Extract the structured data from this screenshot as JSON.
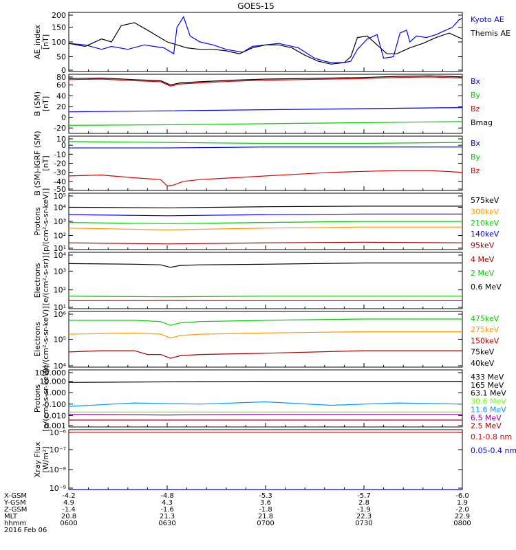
{
  "title": "GOES-15",
  "colors": {
    "blue": "#0000ff",
    "black": "#000000",
    "red": "#dd0000",
    "green": "#00cc00",
    "orange": "#ff9900",
    "darkred": "#aa0000",
    "lightblue": "#0099ff",
    "yellow": "#dddd00",
    "lime": "#66ff00",
    "purple": "#990099",
    "brown": "#990000"
  },
  "chart_data": [
    {
      "type": "line",
      "ylabel": "AE_index\n[nT]",
      "ylim": [
        0,
        200
      ],
      "yscale": "linear",
      "yticks": [
        "0",
        "50",
        "100",
        "150",
        "200"
      ],
      "xlim": [
        0,
        120
      ],
      "series": [
        {
          "name": "Kyoto AE",
          "color": "blue",
          "x": [
            0,
            5,
            10,
            13,
            18,
            23,
            26,
            29,
            32,
            33,
            35,
            37,
            40,
            44,
            48,
            53,
            56,
            60,
            64,
            70,
            75,
            78,
            80,
            84,
            86,
            88,
            91,
            94,
            96,
            99,
            101,
            103,
            104,
            106,
            109,
            112,
            115,
            117,
            119,
            120
          ],
          "y": [
            95,
            90,
            75,
            85,
            75,
            90,
            85,
            80,
            60,
            150,
            185,
            120,
            100,
            90,
            75,
            65,
            85,
            90,
            95,
            80,
            45,
            35,
            30,
            30,
            35,
            75,
            110,
            125,
            45,
            50,
            130,
            140,
            100,
            120,
            115,
            125,
            140,
            150,
            175,
            180
          ]
        },
        {
          "name": "Themis AE",
          "color": "black",
          "x": [
            0,
            5,
            10,
            13,
            16,
            20,
            24,
            27,
            30,
            33,
            36,
            40,
            44,
            48,
            52,
            56,
            60,
            64,
            68,
            72,
            76,
            80,
            84,
            86,
            88,
            91,
            94,
            97,
            100,
            104,
            108,
            112,
            116,
            120
          ],
          "y": [
            95,
            85,
            110,
            100,
            155,
            165,
            140,
            120,
            100,
            90,
            80,
            75,
            75,
            70,
            60,
            80,
            90,
            90,
            80,
            55,
            35,
            25,
            30,
            50,
            115,
            120,
            90,
            60,
            60,
            80,
            95,
            115,
            130,
            110
          ]
        }
      ],
      "legend": [
        "Kyoto AE",
        "Themis AE"
      ]
    },
    {
      "type": "line",
      "ylabel": "B (SM)\n[nT]",
      "ylim": [
        -30,
        80
      ],
      "yscale": "linear",
      "yticks": [
        "-20",
        "0",
        "20",
        "40",
        "60",
        "80"
      ],
      "series": [
        {
          "name": "Bx",
          "color": "blue",
          "x": [
            0,
            30,
            60,
            90,
            120
          ],
          "y": [
            10,
            12,
            14,
            16,
            18
          ]
        },
        {
          "name": "By",
          "color": "green",
          "x": [
            0,
            30,
            60,
            90,
            120
          ],
          "y": [
            -15,
            -14,
            -12,
            -10,
            -8
          ]
        },
        {
          "name": "Bz",
          "color": "red",
          "x": [
            0,
            10,
            20,
            28,
            31,
            34,
            40,
            50,
            60,
            70,
            80,
            90,
            100,
            110,
            120
          ],
          "y": [
            70,
            71,
            68,
            66,
            58,
            62,
            64,
            67,
            69,
            70,
            71,
            72,
            74,
            75,
            73
          ]
        },
        {
          "name": "Bmag",
          "color": "black",
          "x": [
            0,
            10,
            20,
            28,
            31,
            34,
            40,
            50,
            60,
            70,
            80,
            90,
            100,
            110,
            120
          ],
          "y": [
            72,
            73,
            70,
            68,
            60,
            64,
            66,
            69,
            71,
            72,
            73,
            74,
            76,
            77,
            75
          ]
        }
      ],
      "legend": [
        "Bx",
        "By",
        "Bz",
        "Bmag"
      ]
    },
    {
      "type": "line",
      "ylabel": "B (SM)-IGRF (SM)\n[nT]",
      "ylim": [
        -50,
        10
      ],
      "yscale": "linear",
      "yticks": [
        "-50",
        "-40",
        "-30",
        "-20",
        "-10",
        "0",
        "10"
      ],
      "series": [
        {
          "name": "Bx",
          "color": "blue",
          "x": [
            0,
            30,
            60,
            90,
            120
          ],
          "y": [
            -3,
            -3,
            -2,
            -2,
            -2
          ]
        },
        {
          "name": "By",
          "color": "green",
          "x": [
            0,
            30,
            60,
            90,
            120
          ],
          "y": [
            4,
            3,
            2,
            2,
            3
          ]
        },
        {
          "name": "Bz",
          "color": "red",
          "x": [
            0,
            10,
            20,
            28,
            30,
            32,
            35,
            40,
            50,
            60,
            70,
            80,
            90,
            100,
            110,
            120
          ],
          "y": [
            -34,
            -33,
            -36,
            -38,
            -45,
            -44,
            -40,
            -38,
            -36,
            -34,
            -32,
            -30,
            -29,
            -28,
            -28,
            -30
          ]
        }
      ],
      "legend": [
        "Bx",
        "By",
        "Bz"
      ]
    },
    {
      "type": "line",
      "ylabel": "Protons\n[p/(cm²-s-sr-keV)]",
      "ylim": [
        1,
        6
      ],
      "yscale": "log",
      "yticks": [
        "10¹",
        "10²",
        "10³",
        "10⁴",
        "10⁵"
      ],
      "series": [
        {
          "name": "575keV",
          "color": "black",
          "x": [
            0,
            30,
            60,
            90,
            120
          ],
          "y": [
            4.75,
            4.7,
            4.8,
            4.85,
            4.85
          ]
        },
        {
          "name": "300keV",
          "color": "orange",
          "x": [
            0,
            30,
            60,
            90,
            120
          ],
          "y": [
            2.9,
            2.75,
            2.9,
            3.0,
            3.0
          ]
        },
        {
          "name": "210keV",
          "color": "green",
          "x": [
            0,
            30,
            60,
            90,
            120
          ],
          "y": [
            3.4,
            3.3,
            3.4,
            3.5,
            3.5
          ]
        },
        {
          "name": "140keV",
          "color": "blue",
          "x": [
            0,
            30,
            60,
            90,
            120
          ],
          "y": [
            4.1,
            4.0,
            4.1,
            4.15,
            4.15
          ]
        },
        {
          "name": "95keV",
          "color": "darkred",
          "x": [
            0,
            30,
            60,
            90,
            120
          ],
          "y": [
            1.6,
            1.5,
            1.6,
            1.65,
            1.6
          ]
        }
      ],
      "legend": [
        "575keV",
        "300keV",
        "210keV",
        "140keV",
        "95keV"
      ]
    },
    {
      "type": "line",
      "ylabel": "Electrons\n[e/(cm²-s-sr)]",
      "ylim": [
        0.5,
        5
      ],
      "yscale": "log",
      "yticks": [
        "10¹",
        "10²",
        "10³",
        "10⁴"
      ],
      "series": [
        {
          "name": "4 MeV",
          "color": "darkred",
          "x": [
            0,
            30,
            60,
            90,
            120
          ],
          "y": [
            1.15,
            1.15,
            1.15,
            1.15,
            1.15
          ]
        },
        {
          "name": "2 MeV",
          "color": "green",
          "x": [
            0,
            30,
            60,
            90,
            120
          ],
          "y": [
            1.5,
            1.45,
            1.5,
            1.5,
            1.5
          ]
        },
        {
          "name": "0.6 MeV",
          "color": "black",
          "x": [
            0,
            20,
            28,
            31,
            34,
            40,
            60,
            90,
            120
          ],
          "y": [
            4.1,
            4.05,
            4.0,
            3.8,
            3.95,
            4.0,
            4.05,
            4.15,
            4.15
          ]
        }
      ],
      "legend": [
        "4 MeV",
        "2 MeV",
        "0.6 MeV"
      ]
    },
    {
      "type": "line",
      "ylabel": "Electrons\n[e/(cm²-s-sr-keV)]",
      "ylim": [
        3.8,
        6
      ],
      "yscale": "log",
      "yticks": [
        "10⁴",
        "10⁵",
        "10⁶"
      ],
      "series": [
        {
          "name": "475keV",
          "color": "green",
          "x": [
            0,
            20,
            28,
            31,
            34,
            40,
            60,
            90,
            120
          ],
          "y": [
            5.65,
            5.65,
            5.6,
            5.45,
            5.55,
            5.6,
            5.65,
            5.7,
            5.7
          ]
        },
        {
          "name": "275keV",
          "color": "orange",
          "x": [
            0,
            20,
            28,
            31,
            34,
            40,
            60,
            90,
            120
          ],
          "y": [
            5.1,
            5.15,
            5.1,
            4.95,
            5.05,
            5.1,
            5.15,
            5.2,
            5.2
          ]
        },
        {
          "name": "150keV",
          "color": "darkred",
          "x": [
            0,
            10,
            20,
            24,
            28,
            31,
            34,
            40,
            60,
            90,
            120
          ],
          "y": [
            4.4,
            4.45,
            4.45,
            4.3,
            4.3,
            4.15,
            4.25,
            4.3,
            4.35,
            4.45,
            4.45
          ]
        }
      ],
      "legend": [
        "475keV",
        "275keV",
        "150keV",
        "75keV",
        "40keV"
      ]
    },
    {
      "type": "line",
      "ylabel": "Protons\n[p/(cm²-s-sr-keV)]",
      "ylim": [
        -3,
        2
      ],
      "yscale": "log",
      "yticks": [
        "0.001",
        "0.010",
        "0.100",
        "1.000",
        "10.000",
        "100.000"
      ],
      "series": [
        {
          "name": "433 MeV",
          "color": "black",
          "x": [
            0,
            30,
            60,
            90,
            120
          ],
          "y": [
            0.9,
            0.95,
            1.0,
            1.0,
            1.0
          ]
        },
        {
          "name": "11.6 MeV",
          "color": "lightblue",
          "x": [
            0,
            20,
            40,
            60,
            80,
            100,
            120
          ],
          "y": [
            -1.2,
            -0.9,
            -1.0,
            -0.8,
            -1.1,
            -0.9,
            -1.0
          ]
        },
        {
          "name": "30.6 MeV",
          "color": "lime",
          "x": [
            0,
            30,
            60,
            90,
            120
          ],
          "y": [
            -1.7,
            -1.7,
            -1.7,
            -1.7,
            -1.7
          ]
        },
        {
          "name": "6.5 MeV",
          "color": "purple",
          "x": [
            0,
            30,
            60,
            90,
            120
          ],
          "y": [
            -1.9,
            -1.95,
            -1.9,
            -1.9,
            -1.9
          ]
        },
        {
          "name": "2.5 MeV",
          "color": "darkred",
          "x": [
            0,
            30,
            60,
            90,
            120
          ],
          "y": [
            -2.4,
            -2.4,
            -2.4,
            -2.4,
            -2.4
          ]
        }
      ],
      "legend": [
        "433 MeV",
        "165 MeV",
        "63.1 MeV",
        "30.6 MeV",
        "11.6 MeV",
        "6.5 MeV",
        "2.5 MeV"
      ]
    },
    {
      "type": "line",
      "ylabel": "Xray Flux\n[W/m²]",
      "ylim": [
        -9,
        -6.7
      ],
      "yscale": "log",
      "yticks": [
        "10⁻⁹",
        "10⁻⁸",
        "10⁻⁷",
        "10⁻⁶"
      ],
      "series": [
        {
          "name": "0.1-0.8 nm",
          "color": "red",
          "x": [
            0,
            30,
            60,
            90,
            120
          ],
          "y": [
            -6.8,
            -6.8,
            -6.8,
            -6.8,
            -6.8
          ]
        },
        {
          "name": "0.05-0.4 nm",
          "color": "blue",
          "x": [
            0,
            30,
            60,
            90,
            120
          ],
          "y": [
            -9,
            -9,
            -9,
            -9,
            -9
          ]
        }
      ],
      "legend": [
        "0.1-0.8 nm",
        "0.05-0.4 nm"
      ]
    }
  ],
  "xaxis": {
    "labels": [
      "X-GSM",
      "Y-GSM",
      "Z-GSM",
      "MLT",
      "hhmm",
      "2016 Feb 06"
    ],
    "ticks": [
      {
        "x": "-4.2",
        "y": "4.9",
        "z": "-1.4",
        "mlt": "20.8",
        "time": "0600"
      },
      {
        "x": "-4.8",
        "y": "4.3",
        "z": "-1.6",
        "mlt": "21.3",
        "time": "0630"
      },
      {
        "x": "-5.3",
        "y": "3.6",
        "z": "-1.8",
        "mlt": "21.8",
        "time": "0700"
      },
      {
        "x": "-5.7",
        "y": "2.8",
        "z": "-1.9",
        "mlt": "22.3",
        "time": "0730"
      },
      {
        "x": "-6.0",
        "y": "1.9",
        "z": "-2.0",
        "mlt": "22.9",
        "time": "0800"
      }
    ]
  }
}
